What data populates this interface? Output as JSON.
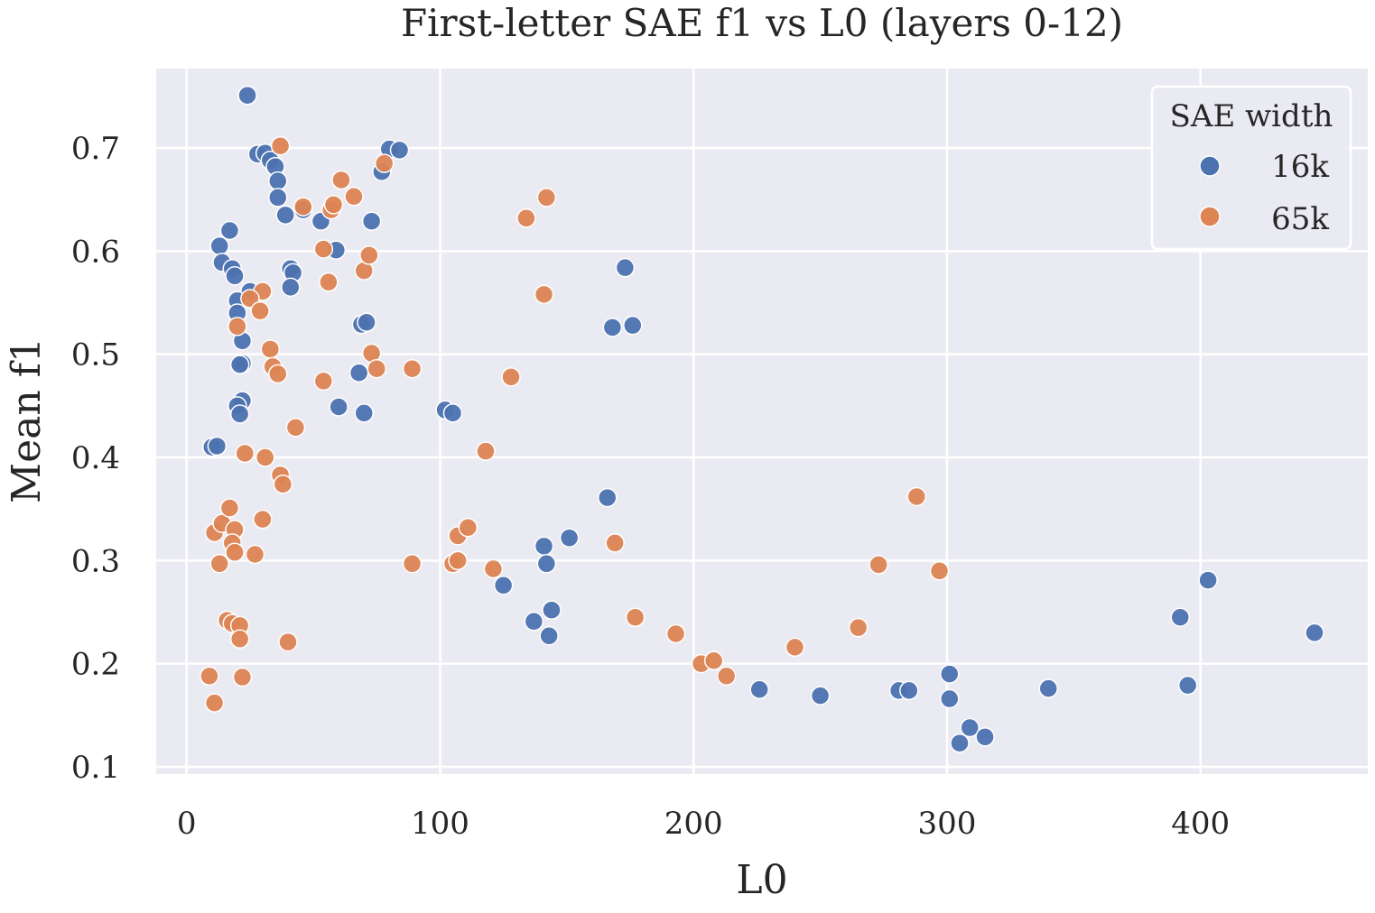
{
  "chart_data": {
    "type": "scatter",
    "title": "First-letter SAE f1 vs L0 (layers 0-12)",
    "xlabel": "L0",
    "ylabel": "Mean f1",
    "xlim": [
      -12,
      466
    ],
    "ylim": [
      0.093,
      0.777
    ],
    "xticks": [
      0,
      100,
      200,
      300,
      400
    ],
    "yticks": [
      0.1,
      0.2,
      0.3,
      0.4,
      0.5,
      0.6,
      0.7
    ],
    "ytick_labels": [
      "0.1",
      "0.2",
      "0.3",
      "0.4",
      "0.5",
      "0.6",
      "0.7"
    ],
    "grid": true,
    "background_color": "#eaeaf2",
    "legend": {
      "title": "SAE width",
      "placement": "top-right",
      "entries": [
        "16k",
        "65k"
      ]
    },
    "series": [
      {
        "name": "16k",
        "color": "#4c72b0",
        "points": [
          [
            24,
            0.751
          ],
          [
            28,
            0.694
          ],
          [
            31,
            0.695
          ],
          [
            33,
            0.688
          ],
          [
            35,
            0.682
          ],
          [
            36,
            0.668
          ],
          [
            36,
            0.652
          ],
          [
            39,
            0.635
          ],
          [
            46,
            0.64
          ],
          [
            53,
            0.629
          ],
          [
            59,
            0.601
          ],
          [
            73,
            0.629
          ],
          [
            77,
            0.677
          ],
          [
            80,
            0.699
          ],
          [
            84,
            0.698
          ],
          [
            13,
            0.605
          ],
          [
            17,
            0.62
          ],
          [
            14,
            0.589
          ],
          [
            18,
            0.583
          ],
          [
            19,
            0.576
          ],
          [
            25,
            0.561
          ],
          [
            20,
            0.552
          ],
          [
            20,
            0.54
          ],
          [
            41,
            0.583
          ],
          [
            42,
            0.579
          ],
          [
            41,
            0.565
          ],
          [
            22,
            0.513
          ],
          [
            22,
            0.491
          ],
          [
            21,
            0.49
          ],
          [
            69,
            0.529
          ],
          [
            71,
            0.531
          ],
          [
            68,
            0.482
          ],
          [
            22,
            0.455
          ],
          [
            20,
            0.45
          ],
          [
            21,
            0.442
          ],
          [
            60,
            0.449
          ],
          [
            70,
            0.443
          ],
          [
            10,
            0.41
          ],
          [
            12,
            0.411
          ],
          [
            102,
            0.446
          ],
          [
            105,
            0.443
          ],
          [
            166,
            0.361
          ],
          [
            168,
            0.526
          ],
          [
            173,
            0.584
          ],
          [
            176,
            0.528
          ],
          [
            151,
            0.322
          ],
          [
            141,
            0.314
          ],
          [
            142,
            0.297
          ],
          [
            125,
            0.276
          ],
          [
            137,
            0.241
          ],
          [
            144,
            0.252
          ],
          [
            143,
            0.227
          ],
          [
            226,
            0.175
          ],
          [
            250,
            0.169
          ],
          [
            281,
            0.174
          ],
          [
            285,
            0.174
          ],
          [
            301,
            0.19
          ],
          [
            301,
            0.166
          ],
          [
            305,
            0.123
          ],
          [
            309,
            0.138
          ],
          [
            315,
            0.129
          ],
          [
            340,
            0.176
          ],
          [
            392,
            0.245
          ],
          [
            395,
            0.179
          ],
          [
            403,
            0.281
          ],
          [
            445,
            0.23
          ]
        ]
      },
      {
        "name": "65k",
        "color": "#dd8452",
        "points": [
          [
            37,
            0.702
          ],
          [
            46,
            0.643
          ],
          [
            57,
            0.64
          ],
          [
            58,
            0.645
          ],
          [
            61,
            0.669
          ],
          [
            66,
            0.653
          ],
          [
            78,
            0.685
          ],
          [
            54,
            0.602
          ],
          [
            56,
            0.57
          ],
          [
            70,
            0.581
          ],
          [
            72,
            0.596
          ],
          [
            30,
            0.561
          ],
          [
            25,
            0.554
          ],
          [
            29,
            0.542
          ],
          [
            20,
            0.527
          ],
          [
            33,
            0.505
          ],
          [
            34,
            0.488
          ],
          [
            36,
            0.481
          ],
          [
            73,
            0.501
          ],
          [
            75,
            0.486
          ],
          [
            89,
            0.486
          ],
          [
            54,
            0.474
          ],
          [
            43,
            0.429
          ],
          [
            128,
            0.478
          ],
          [
            134,
            0.632
          ],
          [
            142,
            0.652
          ],
          [
            141,
            0.558
          ],
          [
            118,
            0.406
          ],
          [
            23,
            0.404
          ],
          [
            31,
            0.4
          ],
          [
            37,
            0.383
          ],
          [
            38,
            0.374
          ],
          [
            11,
            0.327
          ],
          [
            14,
            0.336
          ],
          [
            17,
            0.351
          ],
          [
            19,
            0.33
          ],
          [
            18,
            0.317
          ],
          [
            19,
            0.308
          ],
          [
            13,
            0.297
          ],
          [
            27,
            0.306
          ],
          [
            30,
            0.34
          ],
          [
            89,
            0.297
          ],
          [
            105,
            0.297
          ],
          [
            107,
            0.3
          ],
          [
            107,
            0.324
          ],
          [
            111,
            0.332
          ],
          [
            121,
            0.292
          ],
          [
            169,
            0.317
          ],
          [
            16,
            0.242
          ],
          [
            18,
            0.239
          ],
          [
            21,
            0.237
          ],
          [
            21,
            0.224
          ],
          [
            40,
            0.221
          ],
          [
            9,
            0.188
          ],
          [
            11,
            0.162
          ],
          [
            22,
            0.187
          ],
          [
            177,
            0.245
          ],
          [
            193,
            0.229
          ],
          [
            203,
            0.2
          ],
          [
            208,
            0.203
          ],
          [
            213,
            0.188
          ],
          [
            240,
            0.216
          ],
          [
            265,
            0.235
          ],
          [
            273,
            0.296
          ],
          [
            288,
            0.362
          ],
          [
            297,
            0.29
          ]
        ]
      }
    ]
  }
}
